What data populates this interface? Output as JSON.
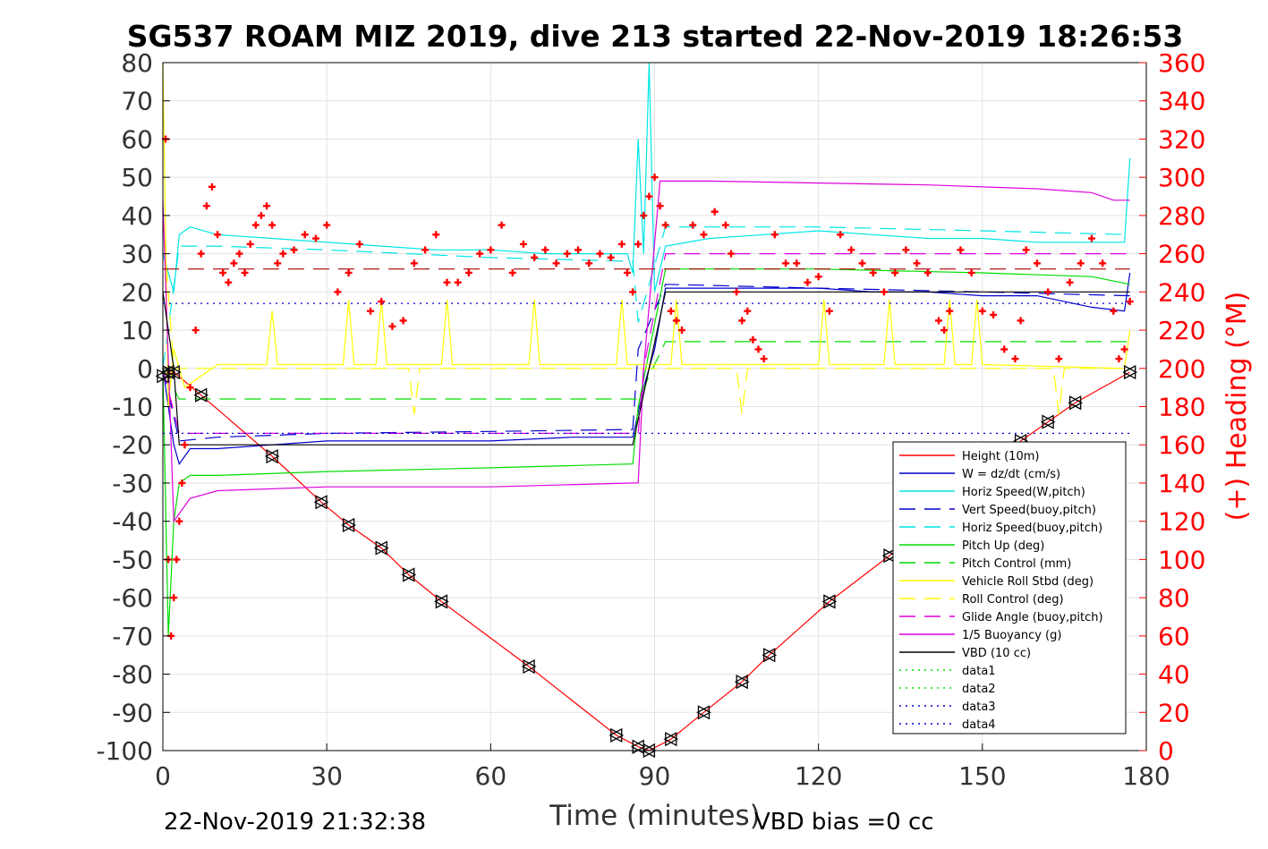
{
  "chart_data": {
    "type": "line",
    "title": "SG537 ROAM MIZ 2019, dive 213 started 22-Nov-2019 18:26:53",
    "xlabel": "Time (minutes)",
    "ylabel": "",
    "y2label": "(+) Heading (°M)",
    "footer_left": "22-Nov-2019 21:32:38",
    "footer_right": "VBD bias =0 cc",
    "xlim": [
      0,
      180
    ],
    "ylim": [
      -100,
      80
    ],
    "y2lim": [
      0,
      360
    ],
    "xticks": [
      "0",
      "30",
      "60",
      "90",
      "120",
      "150",
      "180"
    ],
    "yticks": [
      "80",
      "70",
      "60",
      "50",
      "40",
      "30",
      "20",
      "10",
      "0",
      "-10",
      "-20",
      "-30",
      "-40",
      "-50",
      "-60",
      "-70",
      "-80",
      "-90",
      "-100"
    ],
    "y2ticks": [
      "360",
      "340",
      "320",
      "300",
      "280",
      "260",
      "240",
      "220",
      "200",
      "180",
      "160",
      "140",
      "120",
      "100",
      "80",
      "60",
      "40",
      "20",
      "0"
    ],
    "grid": true,
    "legend_position": "bottom-right",
    "legend": [
      {
        "name": "Height (10m)",
        "color": "#ff0000",
        "dash": "solid"
      },
      {
        "name": "W = dz/dt (cm/s)",
        "color": "#0000cc",
        "dash": "solid"
      },
      {
        "name": "Horiz Speed(W,pitch)",
        "color": "#00e5e5",
        "dash": "solid"
      },
      {
        "name": "Vert Speed(buoy,pitch)",
        "color": "#0000cc",
        "dash": "dashed"
      },
      {
        "name": "Horiz Speed(buoy,pitch)",
        "color": "#00e5e5",
        "dash": "dashed"
      },
      {
        "name": "Pitch Up (deg)",
        "color": "#00dd00",
        "dash": "solid"
      },
      {
        "name": "Pitch Control (mm)",
        "color": "#00dd00",
        "dash": "dashed"
      },
      {
        "name": "Vehicle Roll Stbd (deg)",
        "color": "#ffff00",
        "dash": "solid"
      },
      {
        "name": "Roll Control (deg)",
        "color": "#ffff00",
        "dash": "dashed"
      },
      {
        "name": "Glide Angle (buoy,pitch)",
        "color": "#dd00dd",
        "dash": "dashed"
      },
      {
        "name": "1/5 Buoyancy (g)",
        "color": "#dd00dd",
        "dash": "solid"
      },
      {
        "name": "VBD (10 cc)",
        "color": "#000000",
        "dash": "solid"
      },
      {
        "name": "data1",
        "color": "#00dd00",
        "dash": "dotted"
      },
      {
        "name": "data2",
        "color": "#00dd00",
        "dash": "dotted"
      },
      {
        "name": "data3",
        "color": "#0000cc",
        "dash": "dotted"
      },
      {
        "name": "data4",
        "color": "#0000cc",
        "dash": "dotted"
      }
    ],
    "series": [
      {
        "name": "Height (10m)",
        "color": "#ff0000",
        "dash": "solid",
        "x": [
          0,
          1,
          2,
          7,
          20,
          29,
          34,
          40,
          45,
          51,
          67,
          83,
          87,
          89,
          93,
          99,
          106,
          111,
          122,
          133,
          145,
          157,
          162,
          167,
          177
        ],
        "y": [
          -2,
          -1,
          -1,
          -7,
          -23,
          -35,
          -41,
          -47,
          -54,
          -61,
          -78,
          -96,
          -99,
          -100,
          -97,
          -90,
          -82,
          -75,
          -61,
          -49,
          -36,
          -19,
          -14,
          -9,
          -1
        ]
      },
      {
        "name": "W = dz/dt (cm/s)",
        "color": "#0000cc",
        "dash": "solid",
        "x": [
          0,
          2,
          3,
          5,
          10,
          20,
          30,
          45,
          60,
          75,
          85,
          86,
          88,
          90,
          92,
          100,
          110,
          120,
          130,
          140,
          150,
          160,
          170,
          176,
          177
        ],
        "y": [
          0,
          -20,
          -25,
          -21,
          -21,
          -20,
          -19,
          -19,
          -19,
          -18,
          -18,
          -18,
          -5,
          5,
          21,
          21,
          21,
          21,
          20,
          20,
          19,
          19,
          16,
          15,
          25
        ]
      },
      {
        "name": "Horiz Speed(W,pitch)",
        "color": "#00e5e5",
        "dash": "solid",
        "x": [
          0,
          2,
          3,
          5,
          10,
          20,
          30,
          40,
          50,
          60,
          70,
          80,
          85,
          86,
          87,
          88,
          89,
          90,
          92,
          100,
          110,
          120,
          130,
          140,
          150,
          160,
          170,
          176,
          177
        ],
        "y": [
          30,
          20,
          35,
          37,
          35,
          34,
          33,
          32,
          31,
          31,
          30,
          30,
          30,
          25,
          60,
          30,
          80,
          20,
          32,
          34,
          35,
          36,
          35,
          34,
          34,
          33,
          33,
          33,
          55
        ]
      },
      {
        "name": "Vert Speed(buoy,pitch)",
        "color": "#0000cc",
        "dash": "dashed",
        "x": [
          0,
          3,
          10,
          30,
          60,
          86,
          87,
          92,
          120,
          150,
          177
        ],
        "y": [
          0,
          -19,
          -18,
          -17,
          -16.5,
          -16,
          5,
          22,
          21,
          20,
          19
        ]
      },
      {
        "name": "Horiz Speed(buoy,pitch)",
        "color": "#00e5e5",
        "dash": "dashed",
        "x": [
          0,
          3,
          10,
          30,
          60,
          86,
          87,
          92,
          120,
          150,
          177
        ],
        "y": [
          0,
          32,
          32,
          31,
          29,
          28,
          12,
          37,
          37,
          36,
          35
        ]
      },
      {
        "name": "Pitch Up (deg)",
        "color": "#00dd00",
        "dash": "solid",
        "x": [
          0,
          1,
          2,
          3,
          5,
          10,
          30,
          60,
          86,
          87,
          92,
          120,
          150,
          170,
          177
        ],
        "y": [
          0,
          -70,
          -40,
          -30,
          -28,
          -28,
          -27,
          -26,
          -25,
          -10,
          26,
          26,
          25,
          24,
          22
        ]
      },
      {
        "name": "Pitch Control (mm)",
        "color": "#00dd00",
        "dash": "dashed",
        "x": [
          0,
          3,
          10,
          30,
          60,
          86,
          87,
          92,
          120,
          177
        ],
        "y": [
          0,
          -8,
          -8,
          -8,
          -8,
          -8,
          -8,
          7,
          7,
          7
        ]
      },
      {
        "name": "Vehicle Roll Stbd (deg)",
        "color": "#ffff00",
        "dash": "solid",
        "x": [
          0,
          1,
          2,
          4,
          10,
          19,
          20,
          21,
          33,
          34,
          35,
          39,
          40,
          41,
          51,
          52,
          53,
          67,
          68,
          69,
          83,
          84,
          85,
          93,
          94,
          95,
          120,
          121,
          122,
          132,
          133,
          134,
          143,
          144,
          145,
          148,
          149,
          150,
          176,
          177
        ],
        "y": [
          80,
          -10,
          5,
          -5,
          1,
          1,
          15,
          1,
          1,
          18,
          1,
          1,
          18,
          1,
          1,
          18,
          1,
          1,
          18,
          1,
          1,
          18,
          1,
          1,
          18,
          1,
          1,
          18,
          1,
          1,
          18,
          1,
          1,
          18,
          1,
          1,
          18,
          1,
          0,
          10
        ]
      },
      {
        "name": "Roll Control (deg)",
        "color": "#ffff00",
        "dash": "dashed",
        "x": [
          0,
          2,
          10,
          45,
          46,
          47,
          87,
          90,
          105,
          106,
          107,
          163,
          164,
          165,
          177
        ],
        "y": [
          40,
          0,
          0,
          0,
          -12,
          0,
          0,
          0,
          0,
          -12,
          0,
          0,
          -12,
          0,
          0
        ]
      },
      {
        "name": "Glide Angle (buoy,pitch)",
        "color": "#dd00dd",
        "dash": "dashed",
        "x": [
          0,
          3,
          87,
          88,
          92,
          177
        ],
        "y": [
          0,
          -17,
          -17,
          0,
          30,
          30
        ]
      },
      {
        "name": "1/5 Buoyancy (g)",
        "color": "#dd00dd",
        "dash": "solid",
        "x": [
          0,
          2,
          5,
          10,
          30,
          60,
          86,
          87,
          88,
          91,
          100,
          140,
          160,
          170,
          174,
          177
        ],
        "y": [
          44,
          -40,
          -34,
          -32,
          -31,
          -31,
          -30,
          -30,
          0,
          49,
          49,
          48,
          47,
          46,
          44,
          44
        ]
      },
      {
        "name": "VBD (10 cc)",
        "color": "#000000",
        "dash": "solid",
        "x": [
          0,
          2,
          3,
          86,
          92,
          177
        ],
        "y": [
          20,
          0,
          -20,
          -20,
          20,
          20
        ]
      },
      {
        "name": "data3",
        "color": "#0000cc",
        "dash": "dotted",
        "x": [
          0,
          177
        ],
        "y": [
          17,
          17
        ]
      },
      {
        "name": "data4",
        "color": "#0000cc",
        "dash": "dotted",
        "x": [
          0,
          177
        ],
        "y": [
          -17,
          -17
        ]
      },
      {
        "name": "",
        "color": "#aa0000",
        "dash": "dashed",
        "x": [
          0,
          177
        ],
        "y": [
          26,
          26
        ]
      }
    ],
    "heading": {
      "name": "(+) Heading (°M)",
      "color": "#ff0000",
      "axis": "right",
      "x": [
        0.5,
        1,
        1.5,
        2,
        2.5,
        3,
        3.5,
        4,
        5,
        6,
        7,
        8,
        9,
        10,
        11,
        12,
        13,
        14,
        15,
        16,
        17,
        18,
        19,
        20,
        21,
        22,
        24,
        26,
        28,
        30,
        32,
        34,
        36,
        38,
        40,
        42,
        44,
        46,
        48,
        50,
        52,
        54,
        56,
        58,
        60,
        62,
        64,
        66,
        68,
        70,
        72,
        74,
        76,
        78,
        80,
        82,
        84,
        85,
        86,
        87,
        88,
        89,
        90,
        91,
        92,
        93,
        94,
        95,
        97,
        99,
        101,
        103,
        104,
        105,
        106,
        107,
        108,
        109,
        110,
        112,
        114,
        116,
        118,
        120,
        122,
        124,
        126,
        128,
        130,
        132,
        134,
        136,
        138,
        140,
        142,
        143,
        144,
        146,
        148,
        150,
        152,
        154,
        156,
        157,
        158,
        160,
        162,
        164,
        166,
        168,
        170,
        172,
        174,
        175,
        176,
        177
      ],
      "y": [
        320,
        100,
        60,
        80,
        100,
        120,
        140,
        160,
        190,
        220,
        260,
        285,
        295,
        270,
        250,
        245,
        255,
        260,
        250,
        265,
        275,
        280,
        285,
        275,
        255,
        260,
        262,
        270,
        268,
        275,
        240,
        250,
        265,
        230,
        235,
        222,
        225,
        255,
        262,
        270,
        245,
        245,
        250,
        260,
        262,
        275,
        250,
        265,
        258,
        262,
        255,
        260,
        262,
        255,
        260,
        258,
        265,
        250,
        240,
        265,
        280,
        290,
        300,
        285,
        275,
        230,
        225,
        220,
        275,
        270,
        282,
        275,
        260,
        240,
        225,
        230,
        215,
        210,
        205,
        270,
        255,
        255,
        245,
        248,
        230,
        270,
        262,
        255,
        250,
        240,
        250,
        262,
        255,
        250,
        225,
        220,
        230,
        262,
        250,
        230,
        228,
        210,
        205,
        225,
        262,
        255,
        240,
        205,
        245,
        255,
        268,
        255,
        230,
        205,
        210,
        235
      ]
    }
  }
}
